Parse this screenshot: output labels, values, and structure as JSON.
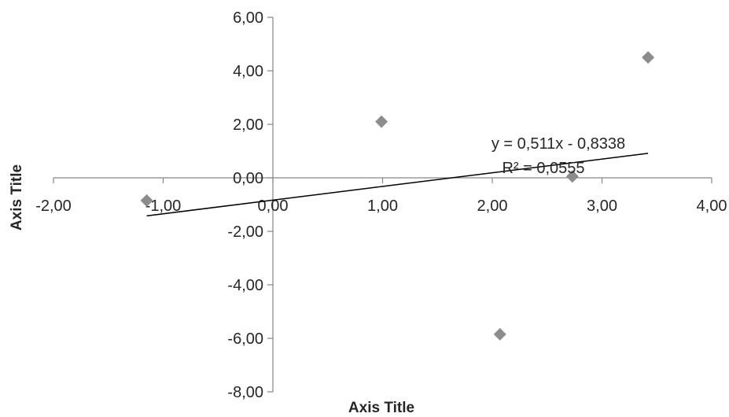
{
  "chart_data": {
    "type": "scatter",
    "title": "",
    "xlabel": "Axis Title",
    "ylabel": "Axis Title",
    "xlim": [
      -2,
      4
    ],
    "ylim": [
      -8,
      6
    ],
    "x_ticks": [
      -2,
      -1,
      0,
      1,
      2,
      3,
      4
    ],
    "y_ticks": [
      -8,
      -6,
      -4,
      -2,
      0,
      2,
      4,
      6
    ],
    "x_tick_labels": [
      "-2,00",
      "-1,00",
      "0,00",
      "1,00",
      "2,00",
      "3,00",
      "4,00"
    ],
    "y_tick_labels": [
      "-8,00",
      "-6,00",
      "-4,00",
      "-2,00",
      "0,00",
      "2,00",
      "4,00",
      "6,00"
    ],
    "grid": false,
    "marker": "diamond",
    "colors": {
      "marker": "#8c8c8c",
      "axis": "#868686",
      "trendline": "#000000",
      "text": "#262626"
    },
    "points": [
      {
        "x": -1.15,
        "y": -0.85
      },
      {
        "x": 0.99,
        "y": 2.1
      },
      {
        "x": 2.07,
        "y": -5.85
      },
      {
        "x": 2.73,
        "y": 0.05
      },
      {
        "x": 3.42,
        "y": 4.5
      }
    ],
    "trendline": {
      "type": "linear",
      "slope": 0.511,
      "intercept": -0.8338,
      "x_range": [
        -1.15,
        3.42
      ],
      "equation": "y = 0,511x - 0,8338",
      "r_squared": "R² = 0,0555"
    }
  }
}
